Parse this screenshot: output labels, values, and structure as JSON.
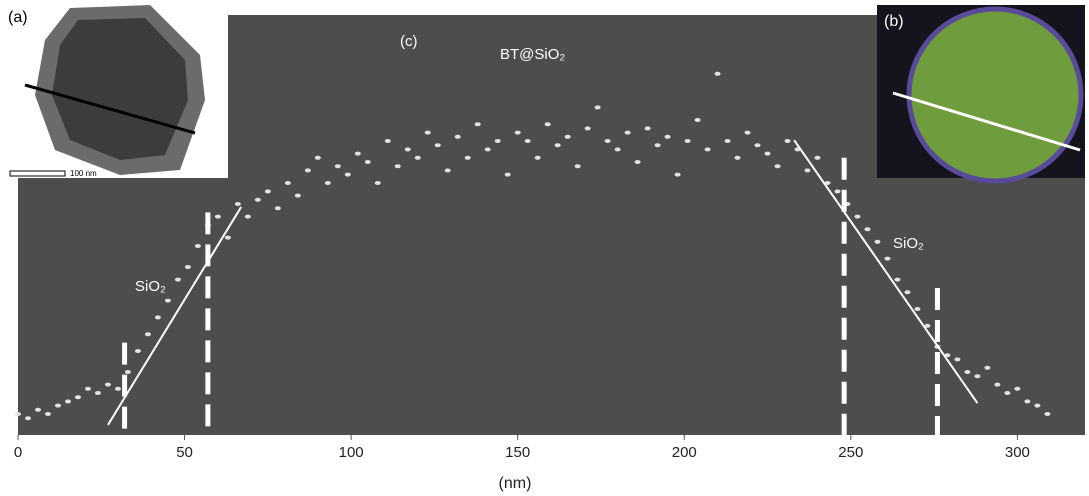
{
  "chart_data": {
    "type": "scatter",
    "x_label": "(nm)",
    "annotations": {
      "panel_c": "(c)",
      "material": "BT@SiO₂",
      "shell_left": "SiO₂",
      "shell_right": "SiO₂",
      "inset_a": "(a)",
      "inset_b": "(b)",
      "scale_bar": "100 nm"
    },
    "color": "#e2e2e2",
    "xlim": [
      0,
      320
    ],
    "ylim": [
      0,
      100
    ],
    "xticks": [
      0,
      50,
      100,
      150,
      200,
      250,
      300
    ],
    "x": [
      0,
      3,
      6,
      9,
      12,
      15,
      18,
      21,
      24,
      27,
      30,
      33,
      36,
      39,
      42,
      45,
      48,
      51,
      54,
      57,
      60,
      63,
      66,
      69,
      72,
      75,
      78,
      81,
      84,
      87,
      90,
      93,
      96,
      99,
      102,
      105,
      108,
      111,
      114,
      117,
      120,
      123,
      126,
      129,
      132,
      135,
      138,
      141,
      144,
      147,
      150,
      153,
      156,
      159,
      162,
      165,
      168,
      171,
      174,
      177,
      180,
      183,
      186,
      189,
      192,
      195,
      198,
      201,
      204,
      207,
      210,
      213,
      216,
      219,
      222,
      225,
      228,
      231,
      234,
      237,
      240,
      243,
      246,
      249,
      252,
      255,
      258,
      261,
      264,
      267,
      270,
      273,
      276,
      279,
      282,
      285,
      288,
      291,
      294,
      297,
      300,
      303,
      306,
      309
    ],
    "values": [
      5,
      4,
      6,
      5,
      7,
      8,
      9,
      11,
      10,
      12,
      11,
      15,
      20,
      24,
      28,
      32,
      37,
      40,
      45,
      50,
      52,
      47,
      55,
      52,
      56,
      58,
      54,
      60,
      57,
      63,
      66,
      60,
      64,
      62,
      67,
      65,
      60,
      70,
      64,
      68,
      66,
      72,
      69,
      63,
      71,
      66,
      74,
      68,
      70,
      62,
      72,
      70,
      66,
      74,
      69,
      71,
      64,
      73,
      78,
      70,
      68,
      72,
      65,
      73,
      69,
      71,
      62,
      70,
      75,
      68,
      86,
      70,
      66,
      72,
      69,
      67,
      64,
      70,
      68,
      63,
      66,
      60,
      58,
      55,
      52,
      49,
      46,
      42,
      37,
      34,
      30,
      26,
      21,
      19,
      18,
      15,
      14,
      16,
      12,
      10,
      11,
      8,
      7,
      5
    ],
    "reference_lines": [
      {
        "x": 32,
        "y": 22
      },
      {
        "x": 57,
        "y": 53
      },
      {
        "x": 248,
        "y": 66
      },
      {
        "x": 276,
        "y": 35
      }
    ],
    "fit_lines": [
      {
        "x": [
          27,
          67
        ],
        "y": [
          2.4,
          54.3
        ]
      },
      {
        "x": [
          233,
          288
        ],
        "y": [
          70.2,
          7.6
        ]
      }
    ]
  }
}
